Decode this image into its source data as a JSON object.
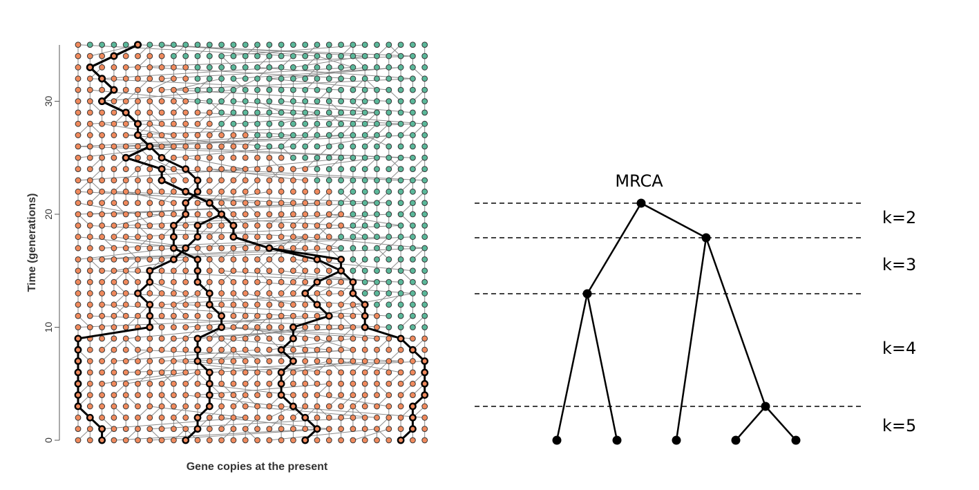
{
  "left_panel": {
    "y_axis_title": "Time (generations)",
    "x_axis_title": "Gene copies at the present",
    "y_ticks": [
      {
        "value": 0,
        "label": "0"
      },
      {
        "value": 10,
        "label": "10"
      },
      {
        "value": 20,
        "label": "20"
      },
      {
        "value": 30,
        "label": "30"
      }
    ],
    "n_copies": 30,
    "n_generations": 36,
    "colors": {
      "orange": "#F08A5D",
      "teal": "#5BB89A",
      "link": "#8A8A8A",
      "lineage": "#000000"
    },
    "teal_start_column_by_generation": [
      30,
      30,
      30,
      30,
      30,
      30,
      30,
      30,
      30,
      30,
      26,
      26,
      25,
      24,
      24,
      23,
      23,
      22,
      22,
      23,
      23,
      22,
      22,
      20,
      20,
      18,
      15,
      15,
      12,
      12,
      10,
      10,
      10,
      10,
      8,
      1
    ],
    "sampled_lineages": [
      [
        2,
        2,
        1,
        0,
        0,
        0,
        0,
        0,
        0,
        0,
        6,
        6,
        6,
        5,
        6,
        6,
        8,
        9,
        10,
        10,
        12,
        11,
        9,
        7,
        7,
        4,
        6,
        5,
        5,
        4,
        2,
        3,
        2,
        1,
        3,
        5
      ],
      [
        9,
        10,
        10,
        11,
        11,
        11,
        11,
        10,
        10,
        10,
        12,
        12,
        11,
        11,
        10,
        10,
        10,
        8,
        8,
        8,
        9,
        9,
        10,
        10,
        9,
        7,
        6,
        5,
        5,
        4,
        2,
        3,
        2,
        1,
        3,
        5
      ],
      [
        19,
        20,
        19,
        18,
        17,
        17,
        17,
        18,
        17,
        18,
        18,
        21,
        20,
        19,
        20,
        22,
        20,
        16,
        13,
        13,
        12,
        11,
        9,
        7,
        7,
        4,
        6,
        5,
        5,
        4,
        2,
        3,
        2,
        1,
        3,
        5
      ],
      [
        27,
        28,
        28,
        28,
        29,
        29,
        29,
        29,
        28,
        27,
        24,
        24,
        24,
        23,
        23,
        22,
        22,
        16,
        13,
        13,
        12,
        11,
        9,
        7,
        7,
        4,
        6,
        5,
        5,
        4,
        2,
        3,
        2,
        1,
        3,
        5
      ]
    ]
  },
  "right_panel": {
    "mrca_label": "MRCA",
    "intervals": [
      {
        "label": "k=2"
      },
      {
        "label": "k=3"
      },
      {
        "label": "k=4"
      },
      {
        "label": "k=5"
      }
    ],
    "line_color": "#000000"
  }
}
